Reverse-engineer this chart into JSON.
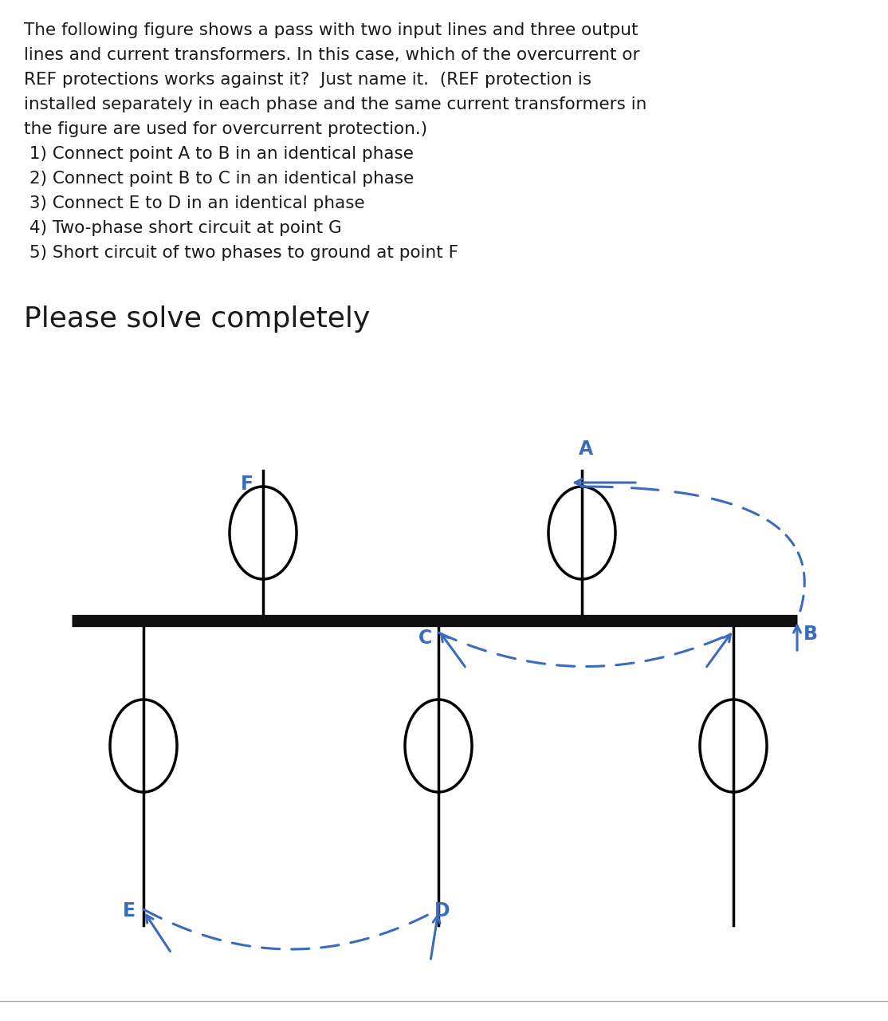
{
  "background_color": "#ffffff",
  "text_color": "#1a1a1a",
  "blue_color": "#3a6bbf",
  "line_color": "#000000",
  "bus_color": "#111111",
  "title_lines": [
    "The following figure shows a pass with two input lines and three output",
    "lines and current transformers. In this case, which of the overcurrent or",
    "REF protections works against it?  Just name it.  (REF protection is",
    "installed separately in each phase and the same current transformers in",
    "the figure are used for overcurrent protection.)",
    " 1) Connect point A to B in an identical phase",
    " 2) Connect point B to C in an identical phase",
    " 3) Connect E to D in an identical phase",
    " 4) Two-phase short circuit at point G",
    " 5) Short circuit of two phases to ground at point F"
  ],
  "subtitle_text": "Please solve completely",
  "title_fontsize": 15.5,
  "subtitle_fontsize": 26,
  "fig_width": 11.14,
  "fig_height": 12.8,
  "dpi": 100
}
